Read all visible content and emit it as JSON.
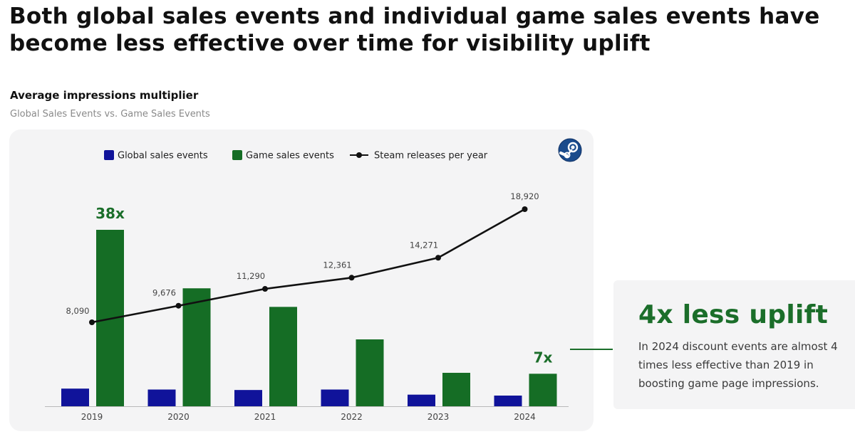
{
  "headline": "Both global sales events and individual game sales events have become less effective over time for visibility uplift",
  "colors": {
    "global": "#10139a",
    "game": "#156d25",
    "line": "#111111",
    "accent": "#1b6e2a",
    "card": "#f4f4f5"
  },
  "icons": {
    "brand": "steam-logo-icon"
  },
  "chart_data": {
    "type": "bar",
    "title": "Average impressions multiplier",
    "subtitle": "Global Sales Events vs. Game Sales Events",
    "categories": [
      "2019",
      "2020",
      "2021",
      "2022",
      "2023",
      "2024"
    ],
    "series": [
      {
        "name": "Global sales events",
        "type": "bar",
        "values": [
          3.8,
          3.6,
          3.5,
          3.6,
          2.5,
          2.3
        ]
      },
      {
        "name": "Game sales events",
        "type": "bar",
        "values": [
          38,
          25.4,
          21.4,
          14.4,
          7.2,
          7
        ]
      },
      {
        "name": "Steam releases per year",
        "type": "line",
        "values": [
          8090,
          9676,
          11290,
          12361,
          14271,
          18920
        ],
        "labels": [
          "8,090",
          "9,676",
          "11,290",
          "12,361",
          "14,271",
          "18,920"
        ]
      }
    ],
    "annotations": [
      {
        "category": "2019",
        "series": "Game sales events",
        "text": "38x"
      },
      {
        "category": "2024",
        "series": "Game sales events",
        "text": "7x"
      }
    ],
    "ylim_bars": [
      0,
      40
    ],
    "ylim_line": [
      0,
      26500
    ],
    "legend": "top"
  },
  "callout": {
    "headline": "4x less uplift",
    "body": "In 2024 discount events are almost 4 times less effective than 2019 in boosting game page impressions."
  }
}
